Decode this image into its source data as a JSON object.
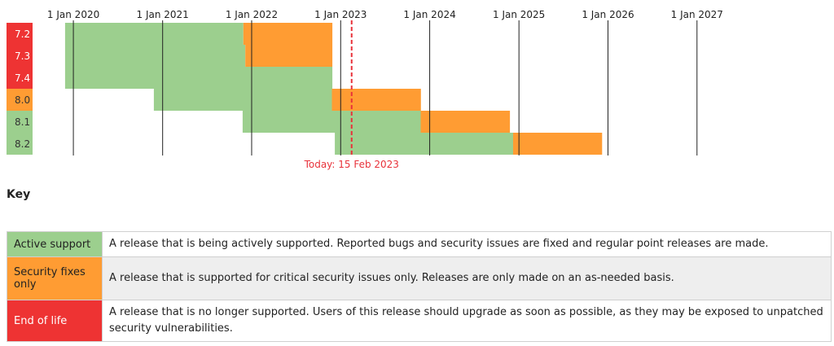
{
  "chart_data": {
    "type": "gantt",
    "x_ticks": [
      "1 Jan 2020",
      "1 Jan 2021",
      "1 Jan 2022",
      "1 Jan 2023",
      "1 Jan 2024",
      "1 Jan 2025",
      "1 Jan 2026",
      "1 Jan 2027"
    ],
    "x_range": [
      "2019-06-01",
      "2027-06-01"
    ],
    "today": {
      "date": "2023-02-15",
      "label": "Today: 15 Feb 2023"
    },
    "branches": [
      {
        "name": "7.2",
        "status": "eol",
        "release": "2019-11-28",
        "active_end": "2021-11-28",
        "security_end": "2022-11-28"
      },
      {
        "name": "7.3",
        "status": "eol",
        "release": "2019-11-28",
        "active_end": "2021-12-06",
        "security_end": "2022-11-28"
      },
      {
        "name": "7.4",
        "status": "eol",
        "release": "2019-11-28",
        "active_end": "2022-11-28",
        "security_end": "2022-11-28"
      },
      {
        "name": "8.0",
        "status": "security",
        "release": "2020-11-26",
        "active_end": "2022-11-26",
        "security_end": "2023-11-26"
      },
      {
        "name": "8.1",
        "status": "active",
        "release": "2021-11-25",
        "active_end": "2023-11-25",
        "security_end": "2024-11-25"
      },
      {
        "name": "8.2",
        "status": "active",
        "release": "2022-12-08",
        "active_end": "2024-12-08",
        "security_end": "2025-12-08"
      }
    ]
  },
  "colors": {
    "active": "#9ccf8e",
    "security": "#ff9c33",
    "eol": "#ee3333",
    "today": "#e8323a"
  },
  "key": {
    "heading": "Key",
    "rows": [
      {
        "label": "Active support",
        "description": "A release that is being actively supported. Reported bugs and security issues are fixed and regular point releases are made."
      },
      {
        "label": "Security fixes only",
        "description": "A release that is supported for critical security issues only. Releases are only made on an as-needed basis."
      },
      {
        "label": "End of life",
        "description": "A release that is no longer supported. Users of this release should upgrade as soon as possible, as they may be exposed to unpatched security vulnerabilities."
      }
    ]
  }
}
